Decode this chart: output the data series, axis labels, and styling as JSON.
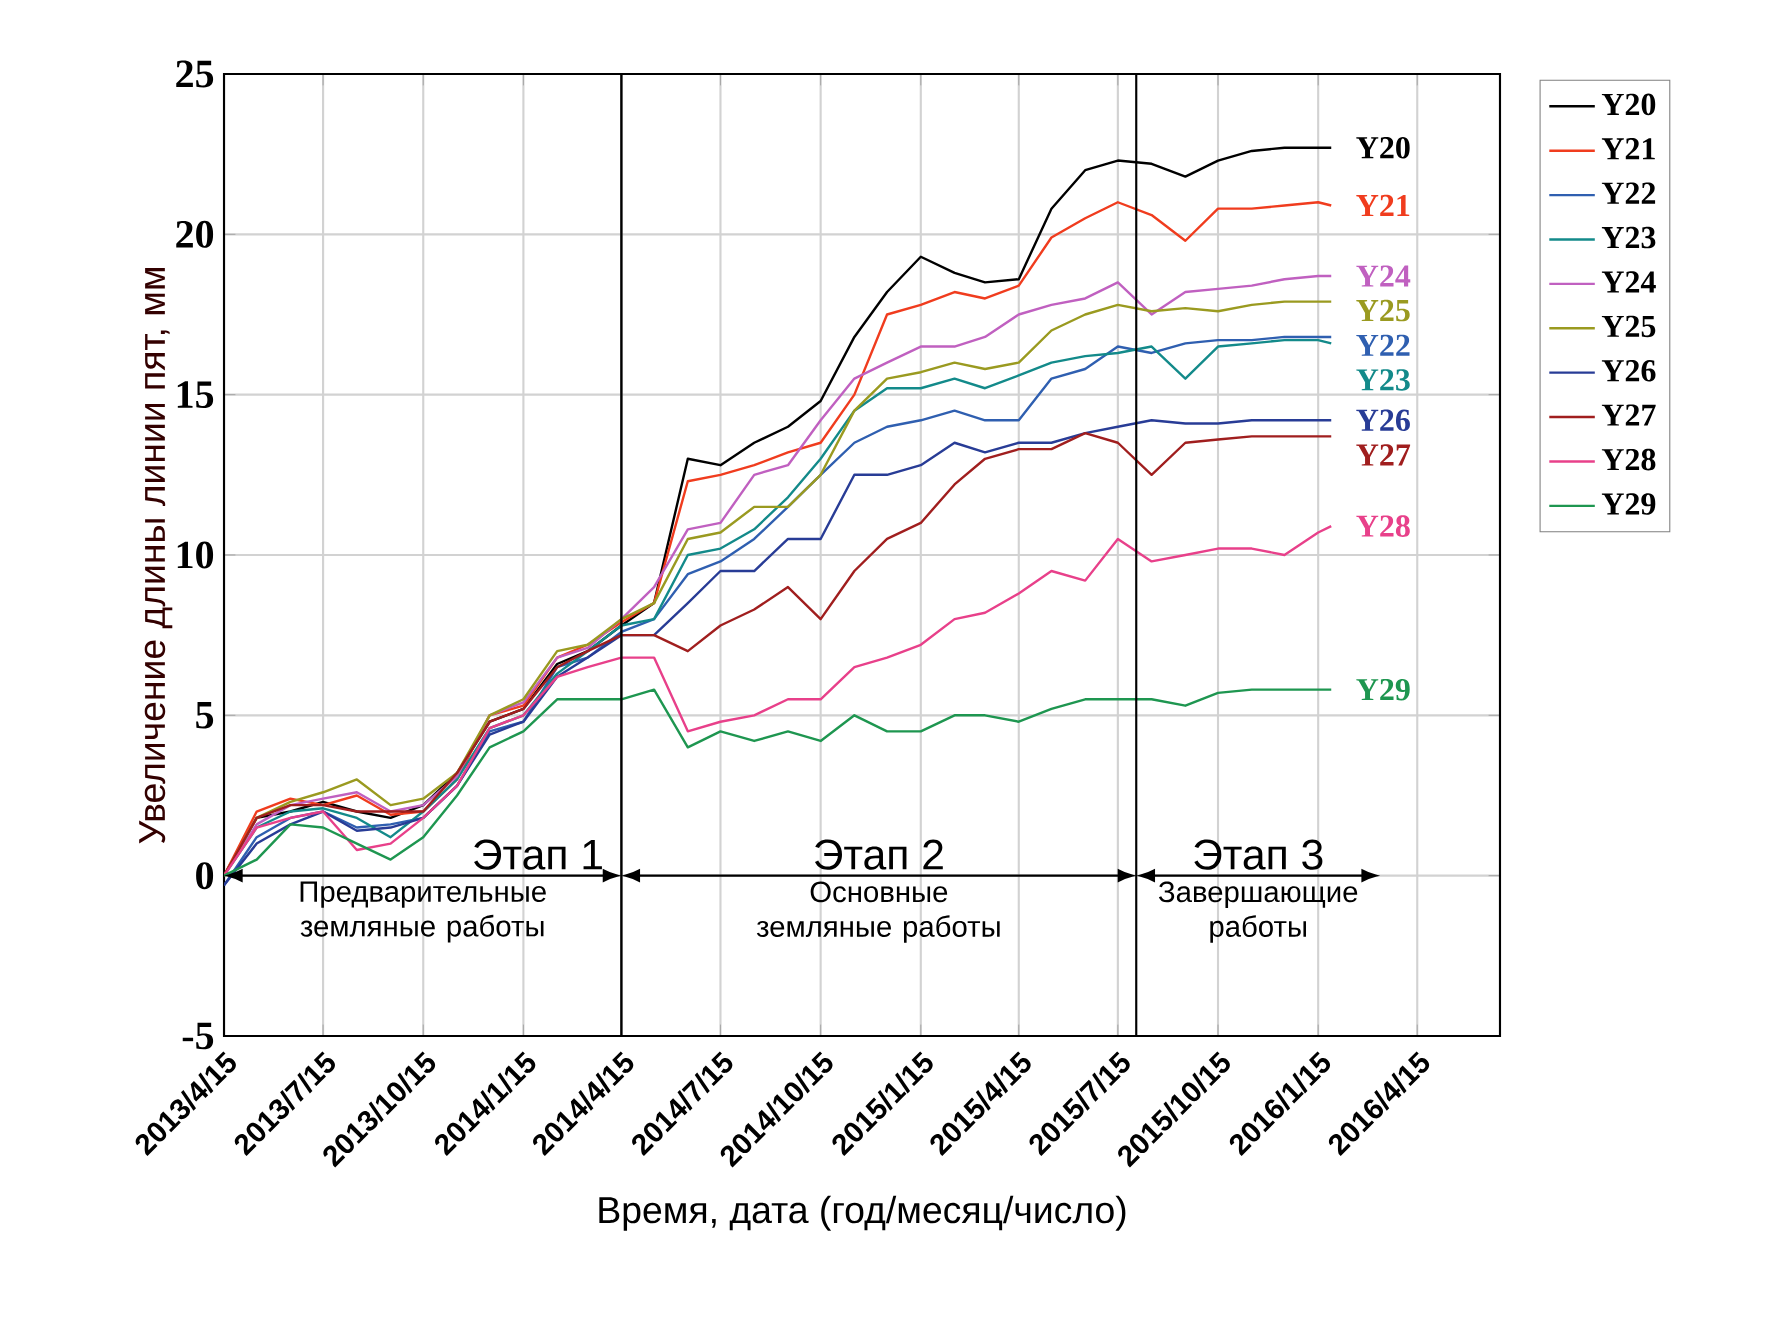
{
  "chart_data": {
    "type": "line",
    "xlabel": "Время, дата (год/месяц/число)",
    "ylabel": "Увеличение длины линии пят, мм",
    "x": [
      "2013-04-15",
      "2013-05-15",
      "2013-06-15",
      "2013-07-15",
      "2013-08-15",
      "2013-09-15",
      "2013-10-15",
      "2013-11-15",
      "2013-12-15",
      "2014-01-15",
      "2014-02-15",
      "2014-03-15",
      "2014-04-15",
      "2014-05-15",
      "2014-06-15",
      "2014-07-15",
      "2014-08-15",
      "2014-09-15",
      "2014-10-15",
      "2014-11-15",
      "2014-12-15",
      "2015-01-15",
      "2015-02-15",
      "2015-03-15",
      "2015-04-15",
      "2015-05-15",
      "2015-06-15",
      "2015-07-15",
      "2015-08-15",
      "2015-09-15",
      "2015-10-15",
      "2015-11-15",
      "2015-12-15",
      "2016-01-15",
      "2016-01-27"
    ],
    "series": [
      {
        "name": "Y20",
        "color": "#000000",
        "values": [
          0,
          1.8,
          2,
          2.3,
          2,
          1.8,
          2.2,
          3.2,
          4.8,
          5.2,
          6.6,
          7,
          7.8,
          8.5,
          13,
          12.8,
          13.5,
          14,
          14.8,
          16.8,
          18.2,
          19.3,
          18.8,
          18.5,
          18.6,
          20.8,
          22,
          22.3,
          22.2,
          21.8,
          22.3,
          22.6,
          22.7,
          22.7,
          22.7
        ]
      },
      {
        "name": "Y21",
        "color": "#f03c1e",
        "values": [
          0,
          2,
          2.4,
          2.2,
          2.5,
          1.9,
          2,
          3,
          5,
          5.3,
          6.8,
          7.2,
          7.9,
          8.5,
          12.3,
          12.5,
          12.8,
          13.2,
          13.5,
          15,
          17.5,
          17.8,
          18.2,
          18,
          18.4,
          19.9,
          20.5,
          21,
          20.6,
          19.8,
          20.8,
          20.8,
          20.9,
          21,
          20.9
        ]
      },
      {
        "name": "Y22",
        "color": "#2f5fb0",
        "values": [
          -0.3,
          1.2,
          1.8,
          2,
          1.5,
          1.6,
          1.8,
          2.8,
          4.5,
          4.8,
          6.5,
          6.8,
          7.6,
          8,
          9.4,
          9.8,
          10.5,
          11.5,
          12.5,
          13.5,
          14,
          14.2,
          14.5,
          14.2,
          14.2,
          15.5,
          15.8,
          16.5,
          16.3,
          16.6,
          16.7,
          16.7,
          16.8,
          16.8,
          16.8
        ]
      },
      {
        "name": "Y23",
        "color": "#138a8a",
        "values": [
          0,
          1.5,
          2,
          2.1,
          1.8,
          1.2,
          2,
          3,
          4.6,
          5,
          6.3,
          7,
          7.8,
          8,
          10,
          10.2,
          10.8,
          11.8,
          13,
          14.5,
          15.2,
          15.2,
          15.5,
          15.2,
          15.6,
          16,
          16.2,
          16.3,
          16.5,
          15.5,
          16.5,
          16.6,
          16.7,
          16.7,
          16.6
        ]
      },
      {
        "name": "Y24",
        "color": "#c060c0",
        "values": [
          0,
          1.6,
          2.2,
          2.4,
          2.6,
          2,
          2.2,
          3.1,
          5,
          5.4,
          6.8,
          7.1,
          8,
          9,
          10.8,
          11,
          12.5,
          12.8,
          14.2,
          15.5,
          16,
          16.5,
          16.5,
          16.8,
          17.5,
          17.8,
          18,
          18.5,
          17.5,
          18.2,
          18.3,
          18.4,
          18.6,
          18.7,
          18.7
        ]
      },
      {
        "name": "Y25",
        "color": "#9a9a20",
        "values": [
          0,
          1.8,
          2.3,
          2.6,
          3,
          2.2,
          2.4,
          3.2,
          5,
          5.5,
          7,
          7.2,
          8,
          8.5,
          10.5,
          10.7,
          11.5,
          11.5,
          12.5,
          14.5,
          15.5,
          15.7,
          16,
          15.8,
          16,
          17,
          17.5,
          17.8,
          17.6,
          17.7,
          17.6,
          17.8,
          17.9,
          17.9,
          17.9
        ]
      },
      {
        "name": "Y26",
        "color": "#283c96",
        "values": [
          -0.3,
          1,
          1.6,
          2,
          1.4,
          1.5,
          1.8,
          2.8,
          4.4,
          4.8,
          6.2,
          6.8,
          7.5,
          7.5,
          8.5,
          9.5,
          9.5,
          10.5,
          10.5,
          12.5,
          12.5,
          12.8,
          13.5,
          13.2,
          13.5,
          13.5,
          13.8,
          14,
          14.2,
          14.1,
          14.1,
          14.2,
          14.2,
          14.2,
          14.2
        ]
      },
      {
        "name": "Y27",
        "color": "#a01e1e",
        "values": [
          0,
          1.8,
          2.2,
          2.2,
          2,
          2,
          2,
          3.2,
          4.8,
          5.2,
          6.5,
          7,
          7.5,
          7.5,
          7,
          7.8,
          8.3,
          9,
          8,
          9.5,
          10.5,
          11,
          12.2,
          13,
          13.3,
          13.3,
          13.8,
          13.5,
          12.5,
          13.5,
          13.6,
          13.7,
          13.7,
          13.7,
          13.7
        ]
      },
      {
        "name": "Y28",
        "color": "#e8408a",
        "values": [
          0,
          1.5,
          1.8,
          2,
          0.8,
          1,
          1.8,
          2.8,
          4.6,
          5,
          6.2,
          6.5,
          6.8,
          6.8,
          4.5,
          4.8,
          5,
          5.5,
          5.5,
          6.5,
          6.8,
          7.2,
          8,
          8.2,
          8.8,
          9.5,
          9.2,
          10.5,
          9.8,
          10,
          10.2,
          10.2,
          10,
          10.7,
          10.9
        ]
      },
      {
        "name": "Y29",
        "color": "#1e9650",
        "values": [
          0,
          0.5,
          1.6,
          1.5,
          1,
          0.5,
          1.2,
          2.5,
          4,
          4.5,
          5.5,
          5.5,
          5.5,
          5.8,
          4,
          4.5,
          4.2,
          4.5,
          4.2,
          5,
          4.5,
          4.5,
          5,
          5,
          4.8,
          5.2,
          5.5,
          5.5,
          5.5,
          5.3,
          5.7,
          5.8,
          5.8,
          5.8,
          5.8
        ]
      }
    ],
    "xlim": [
      "2013-04-15",
      "2016-06-30"
    ],
    "xticks": [
      {
        "value": "2013-04-15",
        "label": "2013/4/15"
      },
      {
        "value": "2013-07-15",
        "label": "2013/7/15"
      },
      {
        "value": "2013-10-15",
        "label": "2013/10/15"
      },
      {
        "value": "2014-01-15",
        "label": "2014/1/15"
      },
      {
        "value": "2014-04-15",
        "label": "2014/4/15"
      },
      {
        "value": "2014-07-15",
        "label": "2014/7/15"
      },
      {
        "value": "2014-10-15",
        "label": "2014/10/15"
      },
      {
        "value": "2015-01-15",
        "label": "2015/1/15"
      },
      {
        "value": "2015-04-15",
        "label": "2015/4/15"
      },
      {
        "value": "2015-07-15",
        "label": "2015/7/15"
      },
      {
        "value": "2015-10-15",
        "label": "2015/10/15"
      },
      {
        "value": "2016-01-15",
        "label": "2016/1/15"
      },
      {
        "value": "2016-04-15",
        "label": "2016/4/15"
      }
    ],
    "ylim": [
      -5,
      25
    ],
    "yticks": [
      -5,
      0,
      5,
      10,
      15,
      20,
      25
    ],
    "grid": true,
    "legend": "right",
    "ref_lines": [
      {
        "axis": "x",
        "value": "2014-04-15",
        "color": "#000000"
      },
      {
        "axis": "x",
        "value": "2015-08-01",
        "color": "#000000"
      }
    ],
    "annotations": [
      "Этап 1",
      "Предварительные земляные работы",
      "Этап 2",
      "Основные земляные работы",
      "Этап 3",
      "Завершающие работы"
    ]
  }
}
